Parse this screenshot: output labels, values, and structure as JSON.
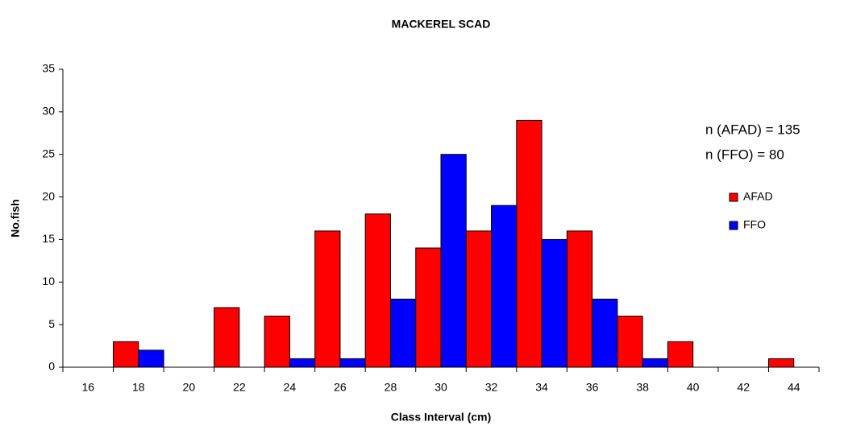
{
  "chart_data": {
    "type": "bar",
    "title": "MACKEREL SCAD",
    "x_label": "Class Interval (cm)",
    "y_label": "No.fish",
    "annotations": [
      "n (AFAD) = 135",
      "n (FFO) = 80"
    ],
    "categories": [
      "16",
      "18",
      "20",
      "22",
      "24",
      "26",
      "28",
      "30",
      "32",
      "34",
      "36",
      "38",
      "40",
      "42",
      "44"
    ],
    "series": [
      {
        "name": "AFAD",
        "color": "#ff0000",
        "values": [
          0,
          3,
          0,
          7,
          6,
          16,
          18,
          14,
          16,
          29,
          16,
          6,
          3,
          0,
          1
        ]
      },
      {
        "name": "FFO",
        "color": "#0000ff",
        "values": [
          0,
          2,
          0,
          0,
          1,
          1,
          8,
          25,
          19,
          15,
          8,
          1,
          0,
          0,
          0
        ]
      }
    ],
    "ylim": [
      0,
      35
    ],
    "yticks": [
      0,
      5,
      10,
      15,
      20,
      25,
      30,
      35
    ],
    "grid": false,
    "legend": "right"
  }
}
